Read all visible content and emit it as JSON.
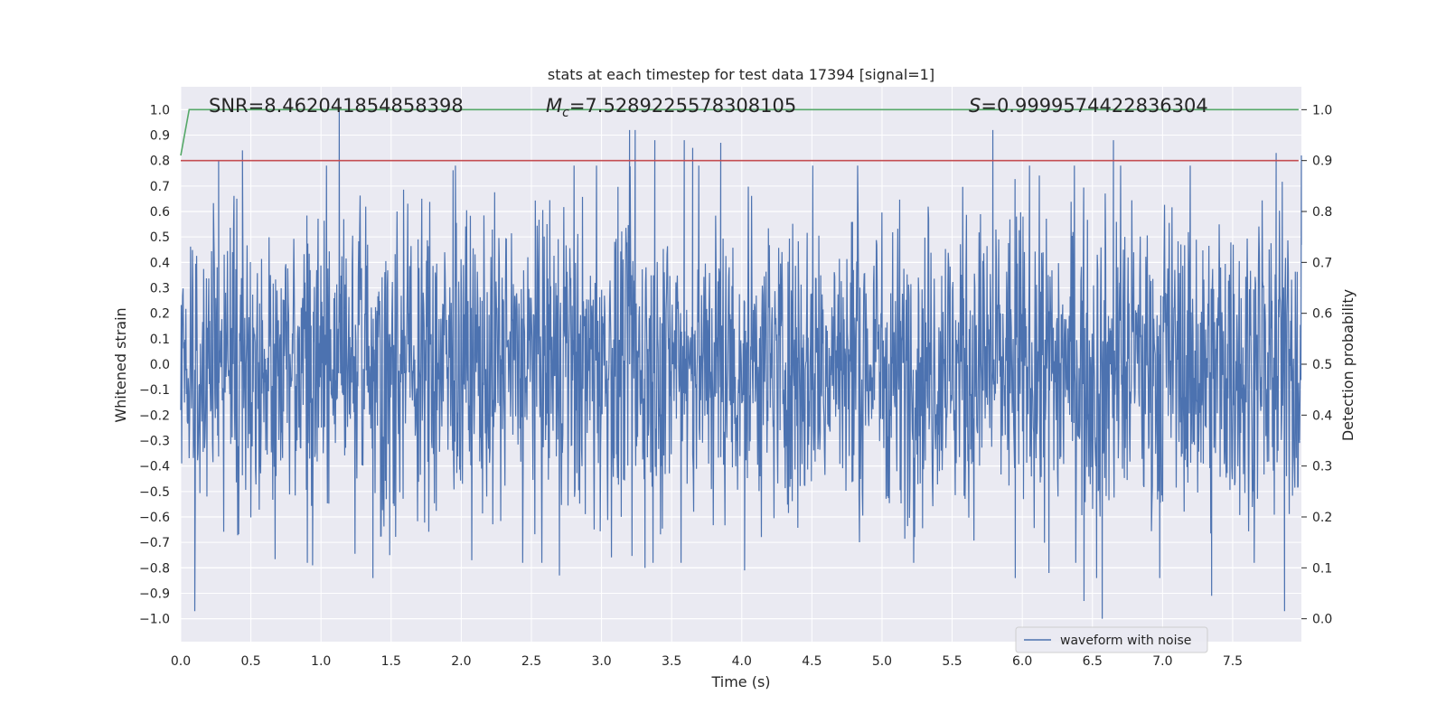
{
  "chart_data": {
    "type": "line",
    "title": "stats at each timestep for test data 17394 [signal=1]",
    "xlabel": "Time (s)",
    "ylabel": "Whitened strain",
    "y2label": "Detection probability",
    "xlim": [
      0.0,
      7.99
    ],
    "ylim": [
      -1.09,
      1.09
    ],
    "y2lim": [
      -0.045,
      1.045
    ],
    "xticks": [
      "0.0",
      "0.5",
      "1.0",
      "1.5",
      "2.0",
      "2.5",
      "3.0",
      "3.5",
      "4.0",
      "4.5",
      "5.0",
      "5.5",
      "6.0",
      "6.5",
      "7.0",
      "7.5"
    ],
    "yticks": [
      "1.0",
      "0.9",
      "0.8",
      "0.7",
      "0.6",
      "0.5",
      "0.4",
      "0.3",
      "0.2",
      "0.1",
      "0.0",
      "−0.1",
      "−0.2",
      "−0.3",
      "−0.4",
      "−0.5",
      "−0.6",
      "−0.7",
      "−0.8",
      "−0.9",
      "−1.0"
    ],
    "y2ticks": [
      "1.0",
      "0.9",
      "0.8",
      "0.7",
      "0.6",
      "0.5",
      "0.4",
      "0.3",
      "0.2",
      "0.1",
      "0.0"
    ],
    "grid": true,
    "legend_position": "lower-right",
    "annotations": {
      "snr": "SNR=8.462041854858398",
      "mc_symbol": "M",
      "mc_sub": "c",
      "mc_value": "=7.5289225578308105",
      "s_symbol": "S",
      "s_value": "=0.9999574422836304"
    },
    "series": [
      {
        "name": "waveform with noise",
        "axis": "left",
        "color": "#4c72b0",
        "kind": "noise",
        "approx_band": [
          -0.45,
          0.45
        ],
        "peaks": [
          {
            "x": 0.1,
            "y": -0.97
          },
          {
            "x": 0.44,
            "y": 0.84
          },
          {
            "x": 0.27,
            "y": 0.8
          },
          {
            "x": 0.94,
            "y": -0.79
          },
          {
            "x": 1.13,
            "y": 1.0
          },
          {
            "x": 1.37,
            "y": -0.84
          },
          {
            "x": 1.49,
            "y": -0.75
          },
          {
            "x": 2.7,
            "y": -0.83
          },
          {
            "x": 3.2,
            "y": 0.92
          },
          {
            "x": 3.24,
            "y": 0.92
          },
          {
            "x": 3.38,
            "y": 0.88
          },
          {
            "x": 3.59,
            "y": 0.88
          },
          {
            "x": 3.65,
            "y": 0.85
          },
          {
            "x": 3.85,
            "y": 0.87
          },
          {
            "x": 3.31,
            "y": -0.8
          },
          {
            "x": 4.02,
            "y": -0.81
          },
          {
            "x": 5.79,
            "y": 0.92
          },
          {
            "x": 5.95,
            "y": -0.84
          },
          {
            "x": 6.19,
            "y": -0.82
          },
          {
            "x": 6.44,
            "y": -0.93
          },
          {
            "x": 6.53,
            "y": -0.84
          },
          {
            "x": 6.57,
            "y": -1.0
          },
          {
            "x": 6.65,
            "y": 0.88
          },
          {
            "x": 6.98,
            "y": -0.84
          },
          {
            "x": 7.35,
            "y": -0.91
          },
          {
            "x": 7.81,
            "y": 0.83
          },
          {
            "x": 7.87,
            "y": -0.97
          },
          {
            "x": 7.99,
            "y": 0.82
          }
        ]
      },
      {
        "name": "",
        "axis": "right",
        "color": "#55a868",
        "x": [
          0.0,
          0.06,
          7.97
        ],
        "y": [
          0.91,
          1.0,
          1.0
        ]
      },
      {
        "name": "",
        "axis": "right",
        "color": "#c44e52",
        "x": [
          0.0,
          7.97
        ],
        "y": [
          0.9,
          0.9
        ]
      }
    ]
  }
}
